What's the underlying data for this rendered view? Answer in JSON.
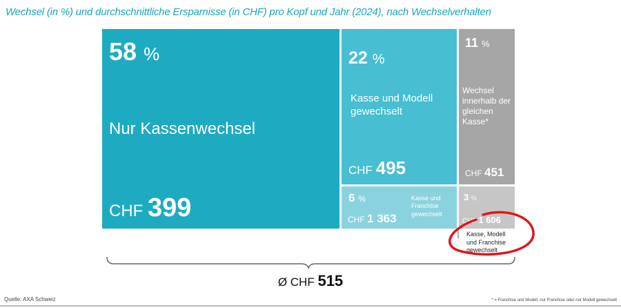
{
  "title": "Wechsel (in %) und durchschnittliche Ersparnisse (in CHF) pro Kopf und Jahr (2024), nach Wechselverhalten",
  "colors": {
    "title": "#1aa6bd",
    "highlight": "#e0161b"
  },
  "chart_data": {
    "type": "treemap",
    "segments": [
      {
        "label": "Nur Kassenwechsel",
        "percent": 58,
        "savings_chf": "399",
        "color": "#1eabc1"
      },
      {
        "label": "Kasse und Modell gewechselt",
        "percent": 22,
        "savings_chf": "495",
        "color": "#47bed1"
      },
      {
        "label": "Wechsel innerhalb der gleichen Kasse*",
        "percent": 11,
        "savings_chf": "451",
        "color": "#a6a6a6"
      },
      {
        "label": "Kasse und Franchise gewechselt",
        "percent": 6,
        "savings_chf": "1 363",
        "color": "#8ad2de"
      },
      {
        "label": "Kasse, Modell und Franchise gewechselt",
        "percent": 3,
        "savings_chf": "1 606",
        "color": "#c6c6c6",
        "highlighted": true
      }
    ],
    "average": {
      "prefix": "Ø CHF",
      "value": "515"
    },
    "pct_unit": "%",
    "currency": "CHF"
  },
  "source": "Quelle: AXA Schweiz",
  "footnote": "* = Franchise und Modell, nur Franchise oder nur Modell gewechselt"
}
